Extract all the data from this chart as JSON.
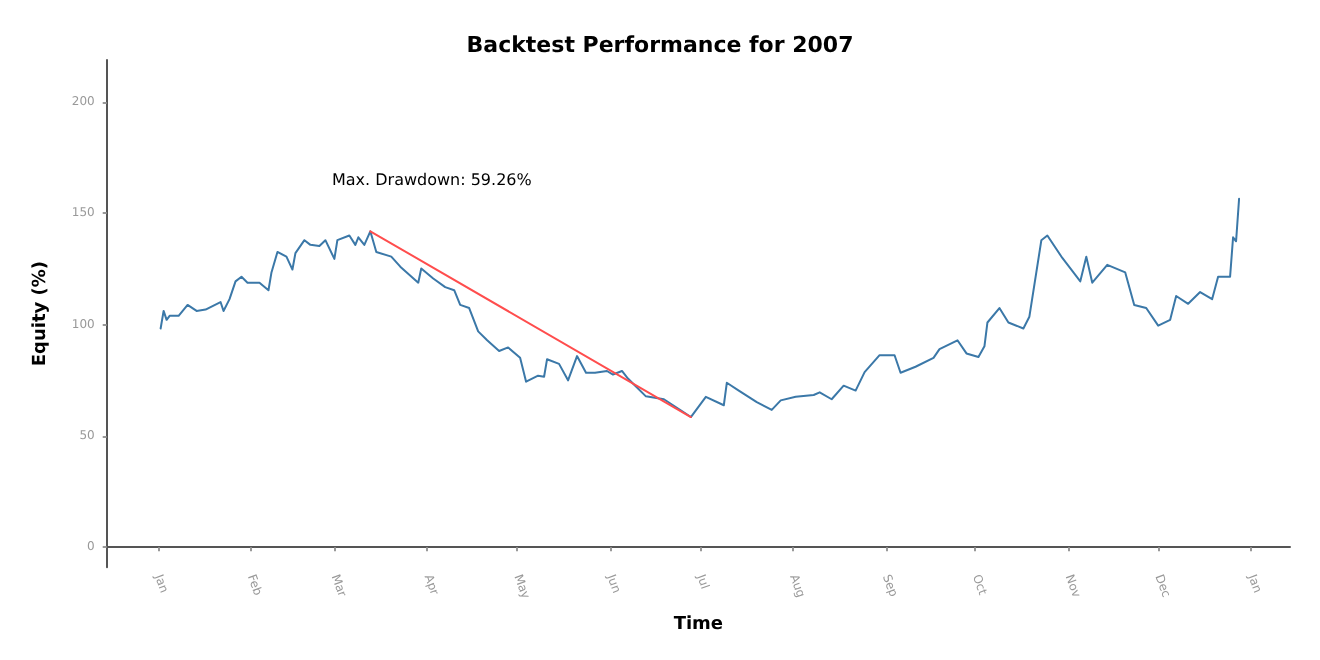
{
  "chart_data": {
    "type": "line",
    "title": "Backtest Performance for 2007",
    "xlabel": "Time",
    "ylabel": "Equity (%)",
    "x": [
      "2007-01-02",
      "2007-01-03",
      "2007-01-04",
      "2007-01-05",
      "2007-01-08",
      "2007-01-11",
      "2007-01-14",
      "2007-01-17",
      "2007-01-22",
      "2007-01-23",
      "2007-01-25",
      "2007-01-27",
      "2007-01-29",
      "2007-01-31",
      "2007-02-04",
      "2007-02-07",
      "2007-02-08",
      "2007-02-10",
      "2007-02-13",
      "2007-02-15",
      "2007-02-16",
      "2007-02-19",
      "2007-02-21",
      "2007-02-24",
      "2007-02-26",
      "2007-03-01",
      "2007-03-02",
      "2007-03-06",
      "2007-03-08",
      "2007-03-09",
      "2007-03-11",
      "2007-03-13",
      "2007-03-15",
      "2007-03-20",
      "2007-03-23",
      "2007-03-29",
      "2007-03-30",
      "2007-04-03",
      "2007-04-07",
      "2007-04-10",
      "2007-04-12",
      "2007-04-15",
      "2007-04-18",
      "2007-04-21",
      "2007-04-25",
      "2007-04-28",
      "2007-05-02",
      "2007-05-04",
      "2007-05-08",
      "2007-05-10",
      "2007-05-11",
      "2007-05-15",
      "2007-05-18",
      "2007-05-21",
      "2007-05-24",
      "2007-05-27",
      "2007-05-31",
      "2007-06-02",
      "2007-06-05",
      "2007-06-07",
      "2007-06-09",
      "2007-06-13",
      "2007-06-19",
      "2007-06-25",
      "2007-06-28",
      "2007-07-03",
      "2007-07-09",
      "2007-07-10",
      "2007-07-14",
      "2007-07-20",
      "2007-07-25",
      "2007-07-28",
      "2007-08-02",
      "2007-08-08",
      "2007-08-10",
      "2007-08-14",
      "2007-08-18",
      "2007-08-22",
      "2007-08-25",
      "2007-08-30",
      "2007-09-04",
      "2007-09-06",
      "2007-09-11",
      "2007-09-17",
      "2007-09-19",
      "2007-09-25",
      "2007-09-28",
      "2007-10-02",
      "2007-10-04",
      "2007-10-05",
      "2007-10-09",
      "2007-10-12",
      "2007-10-17",
      "2007-10-19",
      "2007-10-23",
      "2007-10-25",
      "2007-10-30",
      "2007-11-05",
      "2007-11-07",
      "2007-11-09",
      "2007-11-14",
      "2007-11-20",
      "2007-11-23",
      "2007-11-27",
      "2007-12-01",
      "2007-12-05",
      "2007-12-07",
      "2007-12-11",
      "2007-12-15",
      "2007-12-19",
      "2007-12-21",
      "2007-12-25",
      "2007-12-26",
      "2007-12-27",
      "2007-12-28"
    ],
    "series": [
      {
        "color": "#3b78a8",
        "values": [
          98.3,
          106.2,
          102.2,
          104,
          104,
          108.9,
          106.2,
          106.8,
          110.2,
          106.2,
          111.5,
          119.5,
          121.6,
          118.9,
          118.9,
          115.5,
          123.5,
          132.7,
          130.6,
          124.8,
          132.2,
          138,
          135.9,
          135.4,
          138,
          129.6,
          138,
          140.1,
          135.9,
          139.3,
          135.9,
          142,
          132.7,
          130.6,
          126.1,
          118.9,
          125.3,
          120.8,
          116.9,
          115.5,
          108.9,
          107.5,
          97,
          93,
          88.2,
          89.8,
          85.1,
          74.4,
          77.1,
          76.6,
          84.5,
          82.4,
          75,
          85.9,
          78.4,
          78.4,
          79.2,
          77.6,
          79.2,
          75.8,
          73.1,
          67.8,
          66.5,
          61.2,
          58.5,
          67.6,
          63.8,
          73.9,
          70.4,
          65.2,
          61.7,
          66,
          67.6,
          68.4,
          69.6,
          66.5,
          72.6,
          70.4,
          78.7,
          86.3,
          86.3,
          78.4,
          81.1,
          85.1,
          89,
          93,
          87.1,
          85.5,
          90.3,
          101,
          107.5,
          101,
          98.3,
          103.6,
          138,
          140.1,
          130,
          119.5,
          130.6,
          118.9,
          126.9,
          123.5,
          108.9,
          107.5,
          99.6,
          102.2,
          112.9,
          109.4,
          114.7,
          111.5,
          121.6,
          121.6,
          139.3,
          137.5,
          156.6
        ]
      },
      {
        "color": "#ff4d4d",
        "x": [
          "2007-03-13",
          "2007-06-28"
        ],
        "values": [
          142,
          58.5
        ]
      }
    ],
    "annotations": [
      "Max. Drawdown: 59.26%"
    ],
    "xlim": [
      "2006-12-15",
      "2008-01-14"
    ],
    "xticks": [
      {
        "value": "2007-01-01",
        "label": "Jan"
      },
      {
        "value": "2007-02-01",
        "label": "Feb"
      },
      {
        "value": "2007-03-01",
        "label": "Mar"
      },
      {
        "value": "2007-04-01",
        "label": "Apr"
      },
      {
        "value": "2007-05-01",
        "label": "May"
      },
      {
        "value": "2007-06-01",
        "label": "Jun"
      },
      {
        "value": "2007-07-01",
        "label": "Jul"
      },
      {
        "value": "2007-08-01",
        "label": "Aug"
      },
      {
        "value": "2007-09-01",
        "label": "Sep"
      },
      {
        "value": "2007-10-01",
        "label": "Oct"
      },
      {
        "value": "2007-11-01",
        "label": "Nov"
      },
      {
        "value": "2007-12-01",
        "label": "Dec"
      },
      {
        "value": "2008-01-01",
        "label": "Jan"
      }
    ],
    "ylim": [
      -9,
      219
    ],
    "yticks": [
      0,
      50,
      100,
      150,
      200
    ],
    "grid": false,
    "marker": "none",
    "line_style": "solid"
  }
}
